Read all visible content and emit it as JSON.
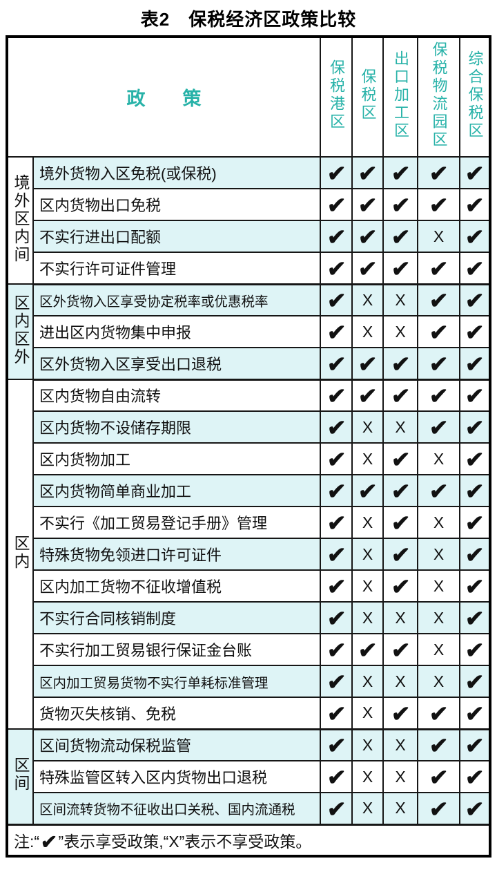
{
  "title": "表2　保税经济区政策比较",
  "colors": {
    "teal": "#27b2a8",
    "row_cyan": "#def4f6",
    "border": "#161616"
  },
  "table": {
    "policy_header": "政　　策",
    "columns": [
      "保税港区",
      "保税区",
      "出口加工区",
      "保税物流园区",
      "综合保税区"
    ],
    "marks": {
      "check": "✔",
      "x": "X"
    },
    "groups": [
      {
        "label": "境外区内间",
        "rows": [
          {
            "label": "境外货物入区免税(或保税)",
            "marks": [
              "check",
              "check",
              "check",
              "check",
              "check"
            ]
          },
          {
            "label": "区内货物出口免税",
            "marks": [
              "check",
              "check",
              "check",
              "check",
              "check"
            ]
          },
          {
            "label": "不实行进出口配额",
            "marks": [
              "check",
              "check",
              "check",
              "x",
              "check"
            ]
          },
          {
            "label": "不实行许可证件管理",
            "marks": [
              "check",
              "check",
              "check",
              "check",
              "check"
            ]
          }
        ]
      },
      {
        "label": "区内区外",
        "rows": [
          {
            "label": "区外货物入区享受协定税率或优惠税率",
            "marks": [
              "check",
              "x",
              "x",
              "check",
              "check"
            ]
          },
          {
            "label": "进出区内货物集中申报",
            "marks": [
              "check",
              "x",
              "x",
              "check",
              "check"
            ]
          },
          {
            "label": "区外货物入区享受出口退税",
            "marks": [
              "check",
              "check",
              "check",
              "check",
              "check"
            ]
          }
        ]
      },
      {
        "label": "区内",
        "rows": [
          {
            "label": "区内货物自由流转",
            "marks": [
              "check",
              "check",
              "check",
              "check",
              "check"
            ]
          },
          {
            "label": "区内货物不设储存期限",
            "marks": [
              "check",
              "x",
              "x",
              "check",
              "check"
            ]
          },
          {
            "label": "区内货物加工",
            "marks": [
              "check",
              "x",
              "check",
              "x",
              "check"
            ]
          },
          {
            "label": "区内货物简单商业加工",
            "marks": [
              "check",
              "check",
              "check",
              "check",
              "check"
            ]
          },
          {
            "label": "不实行《加工贸易登记手册》管理",
            "marks": [
              "check",
              "x",
              "check",
              "x",
              "check"
            ]
          },
          {
            "label": "特殊货物免领进口许可证件",
            "marks": [
              "check",
              "x",
              "check",
              "x",
              "check"
            ]
          },
          {
            "label": "区内加工货物不征收增值税",
            "marks": [
              "check",
              "x",
              "check",
              "x",
              "check"
            ]
          },
          {
            "label": "不实行合同核销制度",
            "marks": [
              "check",
              "x",
              "x",
              "x",
              "check"
            ]
          },
          {
            "label": "不实行加工贸易银行保证金台账",
            "marks": [
              "check",
              "check",
              "check",
              "x",
              "check"
            ]
          },
          {
            "label": "区内加工贸易货物不实行单耗标准管理",
            "marks": [
              "check",
              "x",
              "x",
              "x",
              "check"
            ]
          },
          {
            "label": "货物灭失核销、免税",
            "marks": [
              "check",
              "x",
              "check",
              "check",
              "check"
            ]
          }
        ]
      },
      {
        "label": "区间",
        "rows": [
          {
            "label": "区间货物流动保税监管",
            "marks": [
              "check",
              "x",
              "x",
              "check",
              "check"
            ]
          },
          {
            "label": "特殊监管区转入区内货物出口退税",
            "marks": [
              "check",
              "x",
              "x",
              "check",
              "check"
            ]
          },
          {
            "label": "区间流转货物不征收出口关税、国内流通税",
            "marks": [
              "check",
              "x",
              "x",
              "check",
              "check"
            ]
          }
        ]
      }
    ],
    "note": {
      "prefix": "注:“",
      "check": "✔",
      "suffix": "”表示享受政策,“X”表示不享受政策。"
    }
  }
}
